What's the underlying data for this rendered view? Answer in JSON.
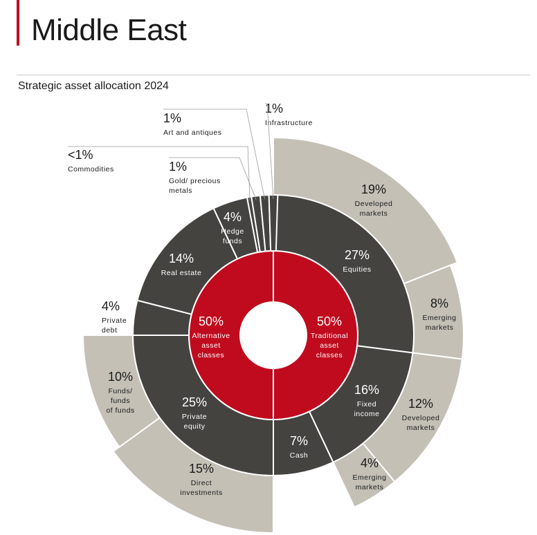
{
  "page": {
    "title": "Middle East",
    "subtitle": "Strategic asset allocation 2024"
  },
  "colors": {
    "accent": "#c00a1e",
    "inner": "#c00a1e",
    "middle": "#444340",
    "outer": "#c4c0b6",
    "separator": "#ffffff",
    "leader": "#9a9a9a",
    "text_dark": "#1a1a1a",
    "text_light": "#ffffff"
  },
  "chart_data": {
    "type": "sunburst",
    "title": "Strategic asset allocation 2024",
    "unit": "%",
    "rings": {
      "inner": [
        {
          "name": "Traditional asset classes",
          "value": 50,
          "label": "50%",
          "lines": [
            "Traditional",
            "asset",
            "classes"
          ]
        },
        {
          "name": "Alternative asset classes",
          "value": 50,
          "label": "50%",
          "lines": [
            "Alternative",
            "asset",
            "classes"
          ]
        }
      ],
      "middle": [
        {
          "name": "Equities",
          "parent": "Traditional asset classes",
          "value": 27,
          "label": "27%",
          "lines": [
            "Equities"
          ]
        },
        {
          "name": "Fixed income",
          "parent": "Traditional asset classes",
          "value": 16,
          "label": "16%",
          "lines": [
            "Fixed",
            "income"
          ]
        },
        {
          "name": "Cash",
          "parent": "Traditional asset classes",
          "value": 7,
          "label": "7%",
          "lines": [
            "Cash"
          ]
        },
        {
          "name": "Private equity",
          "parent": "Alternative asset classes",
          "value": 25,
          "label": "25%",
          "lines": [
            "Private",
            "equity"
          ]
        },
        {
          "name": "Private debt",
          "parent": "Alternative asset classes",
          "value": 4,
          "label": "4%",
          "lines": [
            "Private",
            "debt"
          ]
        },
        {
          "name": "Real estate",
          "parent": "Alternative asset classes",
          "value": 14,
          "label": "14%",
          "lines": [
            "Real estate"
          ]
        },
        {
          "name": "Hedge funds",
          "parent": "Alternative asset classes",
          "value": 4,
          "label": "4%",
          "lines": [
            "Hedge",
            "funds"
          ]
        },
        {
          "name": "Commodities",
          "parent": "Alternative asset classes",
          "value": 0.5,
          "label": "<1%",
          "lines": [
            "Commodities"
          ]
        },
        {
          "name": "Gold/ precious metals",
          "parent": "Alternative asset classes",
          "value": 1,
          "label": "1%",
          "lines": [
            "Gold/ precious",
            "metals"
          ]
        },
        {
          "name": "Art and antiques",
          "parent": "Alternative asset classes",
          "value": 1,
          "label": "1%",
          "lines": [
            "Art and antiques"
          ]
        },
        {
          "name": "Infrastructure",
          "parent": "Alternative asset classes",
          "value": 1,
          "label": "1%",
          "lines": [
            "Infrastructure"
          ]
        }
      ],
      "outer": [
        {
          "name": "Equities Developed markets",
          "parent": "Equities",
          "value": 19,
          "label": "19%",
          "lines": [
            "Developed",
            "markets"
          ]
        },
        {
          "name": "Equities Emerging markets",
          "parent": "Equities",
          "value": 8,
          "label": "8%",
          "lines": [
            "Emerging",
            "markets"
          ]
        },
        {
          "name": "Fixed income Developed markets",
          "parent": "Fixed income",
          "value": 12,
          "label": "12%",
          "lines": [
            "Developed",
            "markets"
          ]
        },
        {
          "name": "Fixed income Emerging markets",
          "parent": "Fixed income",
          "value": 4,
          "label": "4%",
          "lines": [
            "Emerging",
            "markets"
          ]
        },
        {
          "name": "Direct investments",
          "parent": "Private equity",
          "value": 15,
          "label": "15%",
          "lines": [
            "Direct",
            "investments"
          ]
        },
        {
          "name": "Funds/ funds of funds",
          "parent": "Private equity",
          "value": 10,
          "label": "10%",
          "lines": [
            "Funds/",
            "funds",
            "of funds"
          ]
        }
      ]
    }
  }
}
